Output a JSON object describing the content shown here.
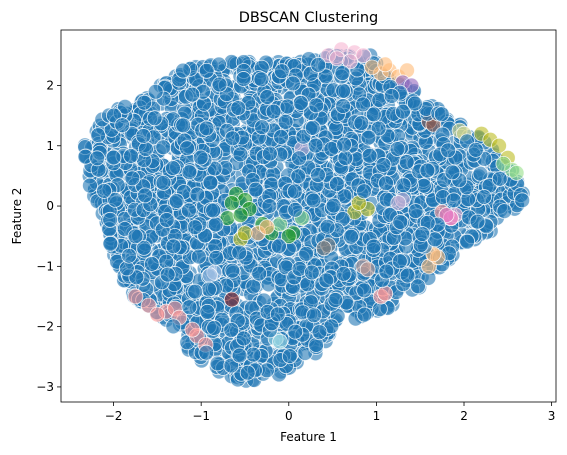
{
  "chart_data": {
    "type": "scatter",
    "title": "DBSCAN Clustering",
    "xlabel": "Feature 1",
    "ylabel": "Feature 2",
    "xlim": [
      -2.6,
      3.05
    ],
    "ylim": [
      -3.25,
      2.92
    ],
    "x_ticks": [
      -2,
      -1,
      0,
      1,
      2,
      3
    ],
    "y_ticks": [
      -3,
      -2,
      -1,
      0,
      1,
      2
    ],
    "grid": false,
    "legend": "none",
    "marker_opacity": 0.6,
    "marker_edge_color": "#ffffff",
    "noise_color": "#1f77b4",
    "noise_region": [
      [
        -2.35,
        0.95
      ],
      [
        -2.1,
        1.55
      ],
      [
        -1.6,
        1.85
      ],
      [
        -1.2,
        2.3
      ],
      [
        -0.6,
        2.4
      ],
      [
        0.0,
        2.4
      ],
      [
        0.5,
        2.6
      ],
      [
        0.9,
        2.55
      ],
      [
        1.3,
        2.1
      ],
      [
        1.55,
        1.75
      ],
      [
        1.95,
        1.4
      ],
      [
        2.3,
        1.0
      ],
      [
        2.6,
        0.5
      ],
      [
        2.75,
        0.05
      ],
      [
        2.4,
        -0.4
      ],
      [
        2.0,
        -0.7
      ],
      [
        1.75,
        -1.0
      ],
      [
        1.5,
        -1.35
      ],
      [
        1.15,
        -1.7
      ],
      [
        0.6,
        -1.95
      ],
      [
        0.3,
        -2.45
      ],
      [
        -0.1,
        -2.8
      ],
      [
        -0.6,
        -2.95
      ],
      [
        -1.1,
        -2.5
      ],
      [
        -1.4,
        -1.9
      ],
      [
        -1.8,
        -1.5
      ],
      [
        -2.0,
        -0.9
      ],
      [
        -2.1,
        -0.2
      ],
      [
        -2.3,
        0.4
      ]
    ],
    "clusters": [
      {
        "color": "#ff9896",
        "points": [
          [
            -1.75,
            -1.5
          ],
          [
            -1.6,
            -1.65
          ],
          [
            -1.4,
            -1.75
          ],
          [
            -1.3,
            -1.7
          ],
          [
            -1.5,
            -1.8
          ],
          [
            -1.05,
            -2.15
          ],
          [
            -0.95,
            -2.3
          ],
          [
            -1.1,
            -2.05
          ],
          [
            -1.25,
            -1.85
          ],
          [
            1.05,
            -1.5
          ],
          [
            1.1,
            -1.45
          ],
          [
            1.85,
            -0.2
          ],
          [
            1.75,
            -0.1
          ]
        ]
      },
      {
        "color": "#f7b6d2",
        "points": [
          [
            0.6,
            2.6
          ],
          [
            0.45,
            2.5
          ],
          [
            0.75,
            2.55
          ],
          [
            0.85,
            2.5
          ],
          [
            0.55,
            2.45
          ],
          [
            0.7,
            2.4
          ],
          [
            1.85,
            -0.2
          ],
          [
            1.9,
            -0.15
          ]
        ]
      },
      {
        "color": "#ffbb78",
        "points": [
          [
            1.05,
            2.2
          ],
          [
            1.15,
            2.25
          ],
          [
            1.25,
            2.15
          ],
          [
            1.35,
            2.25
          ],
          [
            0.95,
            2.3
          ],
          [
            1.1,
            2.35
          ],
          [
            1.6,
            -1.0
          ],
          [
            1.7,
            -0.85
          ]
        ]
      },
      {
        "color": "#2ca02c",
        "points": [
          [
            -0.6,
            0.2
          ],
          [
            -0.5,
            0.1
          ],
          [
            -0.45,
            -0.05
          ],
          [
            -0.7,
            -0.2
          ],
          [
            -0.55,
            -0.15
          ],
          [
            -0.3,
            -0.3
          ],
          [
            -0.2,
            -0.45
          ],
          [
            0.05,
            -0.45
          ],
          [
            0.0,
            -0.5
          ],
          [
            -0.65,
            0.05
          ]
        ]
      },
      {
        "color": "#bcbd22",
        "points": [
          [
            0.75,
            -0.1
          ],
          [
            0.9,
            -0.05
          ],
          [
            0.8,
            0.05
          ],
          [
            -0.55,
            -0.55
          ],
          [
            -0.5,
            -0.45
          ],
          [
            2.2,
            1.2
          ],
          [
            2.3,
            1.1
          ],
          [
            2.4,
            1.0
          ],
          [
            2.5,
            0.8
          ]
        ]
      },
      {
        "color": "#98df8a",
        "points": [
          [
            2.55,
            0.6
          ],
          [
            2.6,
            0.55
          ],
          [
            2.45,
            0.7
          ],
          [
            -0.1,
            -0.3
          ],
          [
            0.15,
            -0.2
          ]
        ]
      },
      {
        "color": "#c5b0d5",
        "points": [
          [
            0.15,
            0.95
          ],
          [
            1.3,
            0.1
          ],
          [
            1.25,
            0.05
          ]
        ]
      },
      {
        "color": "#e377c2",
        "points": [
          [
            1.85,
            -0.2
          ],
          [
            1.8,
            -0.15
          ]
        ]
      },
      {
        "color": "#8c564b",
        "points": [
          [
            1.6,
            1.4
          ],
          [
            1.65,
            1.35
          ]
        ]
      },
      {
        "color": "#9467bd",
        "points": [
          [
            1.3,
            2.05
          ],
          [
            1.4,
            2.0
          ]
        ]
      },
      {
        "color": "#8c1d1d",
        "points": [
          [
            -0.65,
            -1.55
          ]
        ]
      },
      {
        "color": "#c49c94",
        "points": [
          [
            0.85,
            -1.0
          ],
          [
            0.9,
            -1.05
          ]
        ]
      },
      {
        "color": "#9edae5",
        "points": [
          [
            -0.15,
            -2.2
          ],
          [
            -0.1,
            -2.25
          ]
        ]
      },
      {
        "color": "#dbdb8d",
        "points": [
          [
            1.95,
            1.25
          ],
          [
            2.0,
            1.2
          ]
        ]
      },
      {
        "color": "#ffbb78",
        "points": [
          [
            1.65,
            -0.8
          ],
          [
            -0.35,
            -0.45
          ],
          [
            -0.25,
            -0.35
          ]
        ]
      },
      {
        "color": "#7f7f7f",
        "points": [
          [
            0.45,
            -0.65
          ],
          [
            0.4,
            -0.7
          ]
        ]
      },
      {
        "color": "#aec7e8",
        "points": [
          [
            -0.85,
            -1.1
          ],
          [
            -0.9,
            -1.15
          ]
        ]
      }
    ]
  }
}
